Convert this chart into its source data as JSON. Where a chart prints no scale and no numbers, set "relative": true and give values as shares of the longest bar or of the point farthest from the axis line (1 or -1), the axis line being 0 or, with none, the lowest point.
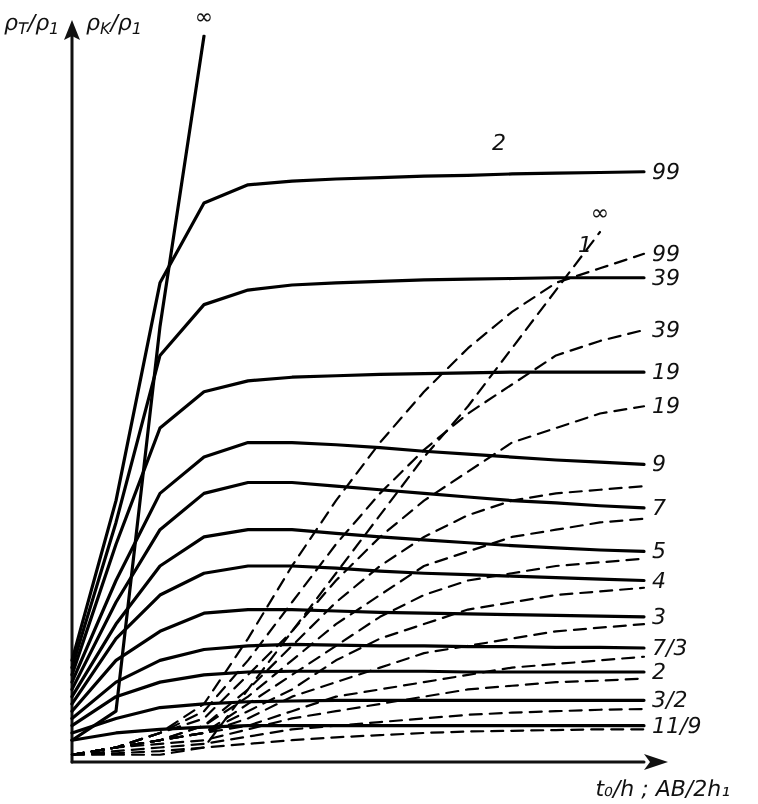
{
  "chart_data": {
    "type": "line",
    "relative": true,
    "legend": false,
    "grid": false,
    "marker": "none",
    "ylabel": "ρ$_{T}$/ρ$_{1}$",
    "xlabel": "t₀/h ; AB/2h₁",
    "annotations": [
      "ρ$_{K}$/ρ$_{1}$",
      "2",
      "1"
    ],
    "categories": [
      null,
      null,
      null,
      null,
      null,
      null,
      null,
      null,
      null,
      null,
      null,
      null,
      null,
      null
    ],
    "series": [
      {
        "name": "∞",
        "color": "#000000",
        "line_style": "solid",
        "values": [
          0.03,
          0.07,
          0.6,
          1,
          null,
          null,
          null,
          null,
          null,
          null,
          null,
          null,
          null,
          null
        ]
      },
      {
        "name": "99",
        "color": "#000000",
        "line_style": "solid",
        "values": [
          0.14,
          0.36,
          0.66,
          0.77,
          0.795,
          0.8,
          0.803,
          0.805,
          0.807,
          0.808,
          0.81,
          0.811,
          0.812,
          0.813
        ]
      },
      {
        "name": "39",
        "color": "#000000",
        "line_style": "solid",
        "values": [
          0.13,
          0.33,
          0.56,
          0.63,
          0.65,
          0.657,
          0.66,
          0.662,
          0.664,
          0.665,
          0.666,
          0.667,
          0.667,
          0.667
        ]
      },
      {
        "name": "19",
        "color": "#000000",
        "line_style": "solid",
        "values": [
          0.12,
          0.3,
          0.46,
          0.51,
          0.525,
          0.53,
          0.532,
          0.534,
          0.535,
          0.536,
          0.537,
          0.537,
          0.537,
          0.537
        ]
      },
      {
        "name": "9",
        "color": "#000000",
        "line_style": "solid",
        "values": [
          0.11,
          0.25,
          0.37,
          0.42,
          0.44,
          0.44,
          0.437,
          0.433,
          0.428,
          0.424,
          0.42,
          0.416,
          0.413,
          0.41
        ]
      },
      {
        "name": "7",
        "color": "#000000",
        "line_style": "solid",
        "values": [
          0.1,
          0.22,
          0.32,
          0.37,
          0.385,
          0.385,
          0.38,
          0.375,
          0.37,
          0.365,
          0.36,
          0.357,
          0.353,
          0.35
        ]
      },
      {
        "name": "5",
        "color": "#000000",
        "line_style": "solid",
        "values": [
          0.09,
          0.19,
          0.27,
          0.31,
          0.32,
          0.32,
          0.315,
          0.31,
          0.306,
          0.302,
          0.298,
          0.295,
          0.292,
          0.29
        ]
      },
      {
        "name": "4",
        "color": "#000000",
        "line_style": "solid",
        "values": [
          0.08,
          0.17,
          0.23,
          0.26,
          0.27,
          0.27,
          0.267,
          0.263,
          0.26,
          0.258,
          0.256,
          0.254,
          0.252,
          0.25
        ]
      },
      {
        "name": "3",
        "color": "#000000",
        "line_style": "solid",
        "values": [
          0.07,
          0.14,
          0.18,
          0.205,
          0.21,
          0.21,
          0.208,
          0.206,
          0.205,
          0.204,
          0.203,
          0.202,
          0.201,
          0.2
        ]
      },
      {
        "name": "7/3",
        "color": "#000000",
        "line_style": "solid",
        "values": [
          0.06,
          0.11,
          0.14,
          0.155,
          0.16,
          0.162,
          0.161,
          0.16,
          0.16,
          0.159,
          0.159,
          0.158,
          0.158,
          0.157
        ]
      },
      {
        "name": "2",
        "color": "#000000",
        "line_style": "solid",
        "values": [
          0.05,
          0.09,
          0.11,
          0.12,
          0.124,
          0.125,
          0.125,
          0.125,
          0.125,
          0.124,
          0.124,
          0.124,
          0.124,
          0.124
        ]
      },
      {
        "name": "3/2",
        "color": "#000000",
        "line_style": "solid",
        "values": [
          0.04,
          0.06,
          0.075,
          0.08,
          0.083,
          0.084,
          0.085,
          0.085,
          0.085,
          0.085,
          0.085,
          0.085,
          0.085,
          0.085
        ]
      },
      {
        "name": "11/9",
        "color": "#000000",
        "line_style": "solid",
        "values": [
          0.03,
          0.04,
          0.045,
          0.048,
          0.05,
          0.05,
          0.05,
          0.05,
          0.05,
          0.05,
          0.05,
          0.05,
          0.05,
          0.05
        ]
      },
      {
        "name": "∞",
        "color": "#000000",
        "line_style": "dashed",
        "values": [
          0.01,
          0.01,
          0.01,
          0.02,
          0.1,
          0.18,
          0.26,
          0.34,
          0.42,
          0.49,
          0.57,
          0.65,
          0.73,
          null
        ]
      },
      {
        "name": "99",
        "color": "#000000",
        "line_style": "dashed",
        "values": [
          0.01,
          0.02,
          0.04,
          0.08,
          0.17,
          0.27,
          0.36,
          0.44,
          0.51,
          0.57,
          0.62,
          0.66,
          0.68,
          0.7
        ]
      },
      {
        "name": "39",
        "color": "#000000",
        "line_style": "dashed",
        "values": [
          0.01,
          0.02,
          0.04,
          0.07,
          0.14,
          0.22,
          0.3,
          0.37,
          0.43,
          0.48,
          0.52,
          0.56,
          0.58,
          0.595
        ]
      },
      {
        "name": "19",
        "color": "#000000",
        "line_style": "dashed",
        "values": [
          0.01,
          0.02,
          0.04,
          0.06,
          0.12,
          0.18,
          0.25,
          0.31,
          0.36,
          0.4,
          0.44,
          0.46,
          0.48,
          0.49
        ]
      },
      {
        "color": "#000000",
        "line_style": "dashed",
        "values": [
          0.01,
          0.02,
          0.03,
          0.05,
          0.1,
          0.16,
          0.22,
          0.27,
          0.31,
          0.34,
          0.36,
          0.37,
          0.375,
          0.38
        ]
      },
      {
        "color": "#000000",
        "line_style": "dashed",
        "values": [
          0.01,
          0.02,
          0.03,
          0.05,
          0.09,
          0.14,
          0.19,
          0.23,
          0.27,
          0.29,
          0.31,
          0.32,
          0.33,
          0.335
        ]
      },
      {
        "color": "#000000",
        "line_style": "dashed",
        "values": [
          0.01,
          0.02,
          0.03,
          0.04,
          0.08,
          0.12,
          0.16,
          0.2,
          0.23,
          0.25,
          0.26,
          0.27,
          0.275,
          0.28
        ]
      },
      {
        "color": "#000000",
        "line_style": "dashed",
        "values": [
          0.01,
          0.02,
          0.03,
          0.04,
          0.07,
          0.1,
          0.14,
          0.17,
          0.19,
          0.21,
          0.22,
          0.23,
          0.235,
          0.24
        ]
      },
      {
        "color": "#000000",
        "line_style": "dashed",
        "values": [
          0.01,
          0.02,
          0.03,
          0.04,
          0.06,
          0.09,
          0.11,
          0.13,
          0.15,
          0.16,
          0.17,
          0.18,
          0.185,
          0.19
        ]
      },
      {
        "color": "#000000",
        "line_style": "dashed",
        "values": [
          0.01,
          0.02,
          0.03,
          0.04,
          0.05,
          0.07,
          0.09,
          0.1,
          0.11,
          0.12,
          0.13,
          0.135,
          0.14,
          0.145
        ]
      },
      {
        "color": "#000000",
        "line_style": "dashed",
        "values": [
          0.01,
          0.02,
          0.025,
          0.03,
          0.045,
          0.06,
          0.07,
          0.08,
          0.09,
          0.1,
          0.105,
          0.11,
          0.112,
          0.115
        ]
      },
      {
        "color": "#000000",
        "line_style": "dashed",
        "values": [
          0.01,
          0.015,
          0.02,
          0.025,
          0.035,
          0.045,
          0.05,
          0.055,
          0.06,
          0.065,
          0.068,
          0.07,
          0.072,
          0.073
        ]
      },
      {
        "color": "#000000",
        "line_style": "dashed",
        "values": [
          0.01,
          0.012,
          0.015,
          0.02,
          0.025,
          0.03,
          0.034,
          0.037,
          0.04,
          0.042,
          0.043,
          0.044,
          0.045,
          0.045
        ]
      }
    ]
  }
}
